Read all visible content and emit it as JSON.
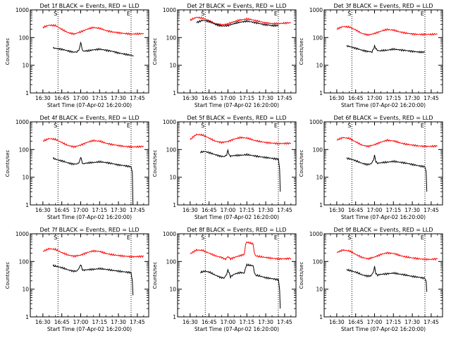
{
  "chart_data": [
    {
      "type": "line",
      "title": "Det 1f BLACK = Events, RED = LLD",
      "ylabel": "Counts/sec",
      "xlabel": "Start Time (07-Apr-02 16:20:00)",
      "yscale": "log",
      "ylim": [
        1,
        1000
      ],
      "x_ticks": [
        "16:30",
        "16:45",
        "17:00",
        "17:15",
        "17:30",
        "17:45"
      ],
      "ticks_min": [
        10,
        25,
        40,
        55,
        70,
        85
      ],
      "xlim_min": [
        0,
        94
      ],
      "markers": [
        {
          "label": "S",
          "min": 22
        },
        {
          "label": "E",
          "min": 80
        }
      ],
      "series": [
        {
          "color": "#ff0000",
          "t": [
            10,
            15,
            20,
            25,
            30,
            35,
            40,
            45,
            50,
            55,
            60,
            65,
            70,
            75,
            80,
            85,
            90
          ],
          "y": [
            230,
            280,
            270,
            200,
            150,
            135,
            160,
            200,
            230,
            215,
            180,
            160,
            150,
            140,
            135,
            135,
            140
          ]
        },
        {
          "color": "#000000",
          "t": [
            18,
            22,
            26,
            30,
            34,
            37,
            39,
            40,
            41,
            42,
            44,
            46,
            50,
            55,
            60,
            65,
            70,
            75,
            80,
            82
          ],
          "y": [
            42,
            40,
            37,
            33,
            30,
            30,
            38,
            70,
            40,
            32,
            33,
            33,
            36,
            38,
            35,
            32,
            28,
            25,
            23,
            22
          ]
        }
      ]
    },
    {
      "type": "line",
      "title": "Det 2f BLACK = Events, RED = LLD",
      "ylabel": "Counts/sec",
      "xlabel": "Start Time (07-Apr-02 16:20:00)",
      "yscale": "log",
      "ylim": [
        1,
        1000
      ],
      "x_ticks": [
        "16:30",
        "16:45",
        "17:00",
        "17:15",
        "17:30",
        "17:45"
      ],
      "ticks_min": [
        10,
        25,
        40,
        55,
        70,
        85
      ],
      "xlim_min": [
        0,
        94
      ],
      "markers": [
        {
          "label": "S",
          "min": 22
        },
        {
          "label": "E",
          "min": 80
        }
      ],
      "series": [
        {
          "color": "#ff0000",
          "t": [
            10,
            15,
            20,
            25,
            30,
            35,
            40,
            45,
            50,
            55,
            60,
            65,
            70,
            75,
            80,
            85,
            90
          ],
          "y": [
            420,
            540,
            500,
            410,
            320,
            290,
            310,
            380,
            430,
            470,
            430,
            380,
            340,
            320,
            320,
            330,
            345
          ]
        },
        {
          "color": "#000000",
          "t": [
            15,
            20,
            25,
            30,
            35,
            40,
            45,
            50,
            55,
            60,
            65,
            70,
            75,
            80
          ],
          "y": [
            350,
            420,
            380,
            300,
            260,
            270,
            320,
            360,
            390,
            360,
            320,
            290,
            270,
            270
          ]
        }
      ]
    },
    {
      "type": "line",
      "title": "Det 3f BLACK = Events, RED = LLD",
      "ylabel": "Counts/sec",
      "xlabel": "Start Time (07-Apr-02 16:20:00)",
      "yscale": "log",
      "ylim": [
        1,
        1000
      ],
      "x_ticks": [
        "16:30",
        "16:45",
        "17:00",
        "17:15",
        "17:30",
        "17:45"
      ],
      "ticks_min": [
        10,
        25,
        40,
        55,
        70,
        85
      ],
      "xlim_min": [
        0,
        94
      ],
      "markers": [
        {
          "label": "S",
          "min": 22
        },
        {
          "label": "E",
          "min": 80
        }
      ],
      "series": [
        {
          "color": "#ff0000",
          "t": [
            10,
            15,
            20,
            25,
            30,
            35,
            40,
            45,
            50,
            55,
            60,
            65,
            70,
            75,
            80,
            85,
            90
          ],
          "y": [
            200,
            250,
            240,
            190,
            140,
            125,
            140,
            170,
            195,
            185,
            160,
            145,
            135,
            130,
            130,
            130,
            135
          ]
        },
        {
          "color": "#000000",
          "t": [
            18,
            22,
            26,
            30,
            34,
            38,
            40,
            42,
            44,
            50,
            55,
            60,
            65,
            70,
            75,
            80
          ],
          "y": [
            50,
            45,
            40,
            35,
            32,
            30,
            48,
            35,
            33,
            35,
            38,
            36,
            34,
            32,
            30,
            30
          ]
        }
      ]
    },
    {
      "type": "line",
      "title": "Det 4f BLACK = Events, RED = LLD",
      "ylabel": "Counts/sec",
      "xlabel": "Start Time (07-Apr-02 16:20:00)",
      "yscale": "log",
      "ylim": [
        1,
        1000
      ],
      "x_ticks": [
        "16:30",
        "16:45",
        "17:00",
        "17:15",
        "17:30",
        "17:45"
      ],
      "ticks_min": [
        10,
        25,
        40,
        55,
        70,
        85
      ],
      "xlim_min": [
        0,
        94
      ],
      "markers": [
        {
          "label": "S",
          "min": 22
        },
        {
          "label": "E",
          "min": 80
        }
      ],
      "series": [
        {
          "color": "#ff0000",
          "t": [
            10,
            15,
            20,
            25,
            30,
            35,
            40,
            45,
            50,
            55,
            60,
            65,
            70,
            75,
            80,
            85,
            90
          ],
          "y": [
            200,
            250,
            230,
            180,
            140,
            125,
            145,
            180,
            210,
            200,
            170,
            150,
            140,
            130,
            125,
            125,
            130
          ]
        },
        {
          "color": "#000000",
          "t": [
            18,
            22,
            26,
            30,
            34,
            37,
            39,
            40,
            41,
            42,
            44,
            50,
            55,
            60,
            65,
            70,
            75,
            80,
            81,
            81.5
          ],
          "y": [
            48,
            42,
            38,
            33,
            30,
            30,
            35,
            55,
            36,
            30,
            32,
            34,
            36,
            34,
            31,
            28,
            26,
            24,
            15,
            1
          ]
        }
      ]
    },
    {
      "type": "line",
      "title": "Det 5f BLACK = Events, RED = LLD",
      "ylabel": "Counts/sec",
      "xlabel": "Start Time (07-Apr-02 16:20:00)",
      "yscale": "log",
      "ylim": [
        1,
        1000
      ],
      "x_ticks": [
        "16:30",
        "16:45",
        "17:00",
        "17:15",
        "17:30",
        "17:45"
      ],
      "ticks_min": [
        10,
        25,
        40,
        55,
        70,
        85
      ],
      "xlim_min": [
        0,
        94
      ],
      "markers": [
        {
          "label": "S",
          "min": 22
        },
        {
          "label": "E",
          "min": 80
        }
      ],
      "series": [
        {
          "color": "#ff0000",
          "t": [
            10,
            15,
            20,
            25,
            30,
            35,
            40,
            45,
            50,
            55,
            60,
            65,
            70,
            75,
            80,
            85,
            90
          ],
          "y": [
            230,
            350,
            330,
            260,
            200,
            180,
            195,
            240,
            270,
            260,
            220,
            195,
            180,
            170,
            165,
            165,
            170
          ]
        },
        {
          "color": "#000000",
          "t": [
            18,
            22,
            26,
            30,
            34,
            37,
            39,
            40,
            41,
            42,
            44,
            50,
            55,
            60,
            65,
            70,
            75,
            80,
            81,
            81.5
          ],
          "y": [
            80,
            85,
            75,
            65,
            58,
            55,
            65,
            95,
            62,
            58,
            60,
            62,
            65,
            60,
            55,
            52,
            48,
            45,
            20,
            3
          ]
        }
      ]
    },
    {
      "type": "line",
      "title": "Det 6f BLACK = Events, RED = LLD",
      "ylabel": "Counts/sec",
      "xlabel": "Start Time (07-Apr-02 16:20:00)",
      "yscale": "log",
      "ylim": [
        1,
        1000
      ],
      "x_ticks": [
        "16:30",
        "16:45",
        "17:00",
        "17:15",
        "17:30",
        "17:45"
      ],
      "ticks_min": [
        10,
        25,
        40,
        55,
        70,
        85
      ],
      "xlim_min": [
        0,
        94
      ],
      "markers": [
        {
          "label": "S",
          "min": 22
        },
        {
          "label": "E",
          "min": 80
        }
      ],
      "series": [
        {
          "color": "#ff0000",
          "t": [
            10,
            15,
            20,
            25,
            30,
            35,
            40,
            45,
            50,
            55,
            60,
            65,
            70,
            75,
            80,
            85,
            90
          ],
          "y": [
            220,
            270,
            250,
            190,
            145,
            130,
            150,
            185,
            215,
            205,
            175,
            155,
            145,
            135,
            130,
            130,
            135
          ]
        },
        {
          "color": "#000000",
          "t": [
            18,
            22,
            26,
            30,
            34,
            37,
            39,
            40,
            41,
            42,
            44,
            50,
            55,
            60,
            65,
            70,
            75,
            80,
            81,
            81.5
          ],
          "y": [
            48,
            44,
            38,
            32,
            29,
            30,
            40,
            60,
            38,
            32,
            33,
            35,
            37,
            35,
            32,
            29,
            26,
            24,
            15,
            3
          ]
        }
      ]
    },
    {
      "type": "line",
      "title": "Det 7f BLACK = Events, RED = LLD",
      "ylabel": "Counts/sec",
      "xlabel": "Start Time (07-Apr-02 16:20:00)",
      "yscale": "log",
      "ylim": [
        1,
        1000
      ],
      "x_ticks": [
        "16:30",
        "16:45",
        "17:00",
        "17:15",
        "17:30",
        "17:45"
      ],
      "ticks_min": [
        10,
        25,
        40,
        55,
        70,
        85
      ],
      "xlim_min": [
        0,
        94
      ],
      "markers": [
        {
          "label": "S",
          "min": 22
        },
        {
          "label": "E",
          "min": 80
        }
      ],
      "series": [
        {
          "color": "#ff0000",
          "t": [
            10,
            15,
            20,
            25,
            30,
            35,
            40,
            45,
            50,
            55,
            60,
            65,
            70,
            75,
            80,
            85,
            90
          ],
          "y": [
            230,
            290,
            270,
            210,
            170,
            155,
            170,
            210,
            240,
            230,
            195,
            175,
            165,
            155,
            150,
            150,
            155
          ]
        },
        {
          "color": "#000000",
          "t": [
            18,
            22,
            26,
            30,
            34,
            37,
            39,
            40,
            41,
            42,
            44,
            50,
            55,
            60,
            65,
            70,
            75,
            80,
            81,
            81.5
          ],
          "y": [
            70,
            65,
            58,
            50,
            45,
            45,
            60,
            80,
            55,
            48,
            50,
            52,
            55,
            52,
            48,
            45,
            42,
            40,
            20,
            6
          ]
        }
      ]
    },
    {
      "type": "line",
      "title": "Det 8f BLACK = Events, RED = LLD",
      "ylabel": "Counts/sec",
      "xlabel": "Start Time (07-Apr-02 16:20:00)",
      "yscale": "log",
      "ylim": [
        1,
        1000
      ],
      "x_ticks": [
        "16:30",
        "16:45",
        "17:00",
        "17:15",
        "17:30",
        "17:45"
      ],
      "ticks_min": [
        10,
        25,
        40,
        55,
        70,
        85
      ],
      "xlim_min": [
        0,
        94
      ],
      "markers": [
        {
          "label": "S",
          "min": 22
        },
        {
          "label": "E",
          "min": 80
        }
      ],
      "series": [
        {
          "color": "#ff0000",
          "t": [
            10,
            15,
            20,
            25,
            30,
            35,
            38,
            40,
            42,
            45,
            50,
            53,
            54,
            55,
            60,
            61,
            62,
            65,
            70,
            75,
            80,
            85,
            90
          ],
          "y": [
            190,
            260,
            250,
            200,
            160,
            140,
            120,
            150,
            125,
            140,
            165,
            180,
            420,
            500,
            430,
            200,
            160,
            150,
            140,
            130,
            125,
            125,
            130
          ]
        },
        {
          "color": "#000000",
          "t": [
            18,
            22,
            26,
            30,
            34,
            37,
            39,
            40,
            42,
            45,
            50,
            53,
            54,
            55,
            60,
            61,
            62,
            65,
            70,
            75,
            80,
            81,
            81.5
          ],
          "y": [
            40,
            45,
            40,
            32,
            27,
            25,
            35,
            50,
            28,
            35,
            40,
            38,
            60,
            75,
            70,
            40,
            32,
            30,
            26,
            24,
            22,
            10,
            2
          ]
        }
      ]
    },
    {
      "type": "line",
      "title": "Det 9f BLACK = Events, RED = LLD",
      "ylabel": "Counts/sec",
      "xlabel": "Start Time (07-Apr-02 16:20:00)",
      "yscale": "log",
      "ylim": [
        1,
        1000
      ],
      "x_ticks": [
        "16:30",
        "16:45",
        "17:00",
        "17:15",
        "17:30",
        "17:45"
      ],
      "ticks_min": [
        10,
        25,
        40,
        55,
        70,
        85
      ],
      "xlim_min": [
        0,
        94
      ],
      "markers": [
        {
          "label": "S",
          "min": 22
        },
        {
          "label": "E",
          "min": 80
        }
      ],
      "series": [
        {
          "color": "#ff0000",
          "t": [
            10,
            15,
            20,
            25,
            30,
            35,
            40,
            45,
            50,
            55,
            60,
            65,
            70,
            75,
            80,
            85,
            90
          ],
          "y": [
            210,
            260,
            240,
            180,
            140,
            125,
            145,
            180,
            205,
            195,
            165,
            145,
            135,
            125,
            120,
            120,
            125
          ]
        },
        {
          "color": "#000000",
          "t": [
            18,
            22,
            26,
            30,
            34,
            37,
            39,
            40,
            41,
            42,
            44,
            50,
            55,
            60,
            65,
            70,
            75,
            80,
            81,
            81.5
          ],
          "y": [
            50,
            45,
            40,
            33,
            30,
            30,
            40,
            65,
            38,
            32,
            34,
            36,
            38,
            35,
            32,
            29,
            27,
            25,
            18,
            8
          ]
        }
      ]
    }
  ]
}
